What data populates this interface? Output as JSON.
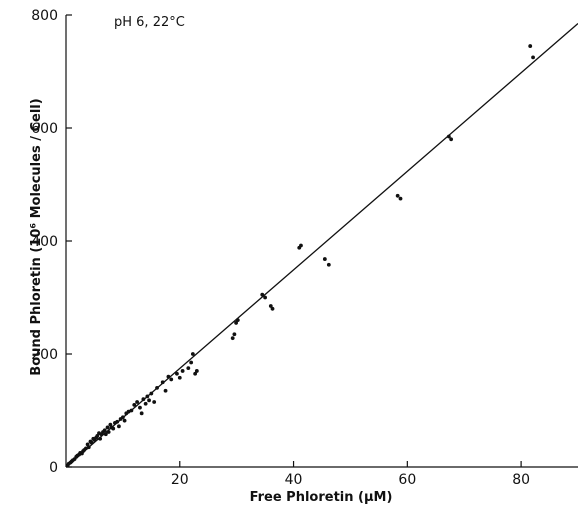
{
  "chart_data": {
    "type": "scatter",
    "annotation": "pH 6, 22°C",
    "xlabel": "Free Phloretin (μM)",
    "ylabel": "Bound Phloretin (10⁶ Molecules / Cell)",
    "xlim": [
      0,
      90
    ],
    "ylim": [
      0,
      800
    ],
    "xticks": [
      20,
      40,
      60,
      80
    ],
    "yticks": [
      0,
      200,
      400,
      600,
      800
    ],
    "grid": false,
    "legend": "none",
    "fit_line": {
      "x": [
        0,
        90
      ],
      "y": [
        0,
        785
      ]
    },
    "series": [
      {
        "x": [
          0.3,
          0.5,
          0.8,
          1.0,
          1.2,
          1.5,
          1.8,
          2.0,
          2.3,
          2.5,
          2.8,
          3.0,
          3.2,
          3.5,
          3.8,
          4.0,
          4.3,
          4.5,
          4.8,
          5.0,
          5.3,
          5.5,
          5.8,
          6.0,
          6.2,
          6.5,
          6.8,
          7.0,
          7.3,
          7.5,
          7.8,
          8.0,
          8.3,
          8.6,
          9.0,
          9.3,
          9.6,
          10.0,
          10.3,
          10.6,
          11.0,
          11.5,
          12.0,
          12.5,
          13.0,
          13.3,
          13.6,
          14.0,
          14.3,
          14.6,
          15.0,
          15.5,
          16.0,
          17.0,
          17.5,
          18.0,
          18.5,
          19.5,
          20.0,
          20.5,
          21.5,
          22.0,
          22.3,
          22.7,
          23.0,
          29.3,
          29.6,
          29.9,
          30.2,
          34.5,
          35.0,
          36.0,
          36.3,
          41.0,
          41.3,
          45.5,
          46.2,
          58.3,
          58.8,
          67.3,
          67.7,
          81.6,
          82.1
        ],
        "y": [
          3,
          6,
          8,
          10,
          12,
          14,
          18,
          20,
          22,
          25,
          24,
          28,
          30,
          33,
          40,
          35,
          45,
          43,
          50,
          48,
          52,
          55,
          60,
          50,
          58,
          62,
          65,
          58,
          70,
          62,
          75,
          70,
          68,
          78,
          80,
          72,
          85,
          88,
          82,
          95,
          98,
          100,
          110,
          115,
          105,
          95,
          120,
          112,
          125,
          118,
          130,
          115,
          140,
          150,
          135,
          160,
          155,
          165,
          158,
          170,
          175,
          185,
          200,
          165,
          170,
          228,
          235,
          255,
          260,
          305,
          300,
          285,
          280,
          388,
          392,
          368,
          358,
          480,
          475,
          585,
          580,
          745,
          725
        ]
      }
    ]
  }
}
